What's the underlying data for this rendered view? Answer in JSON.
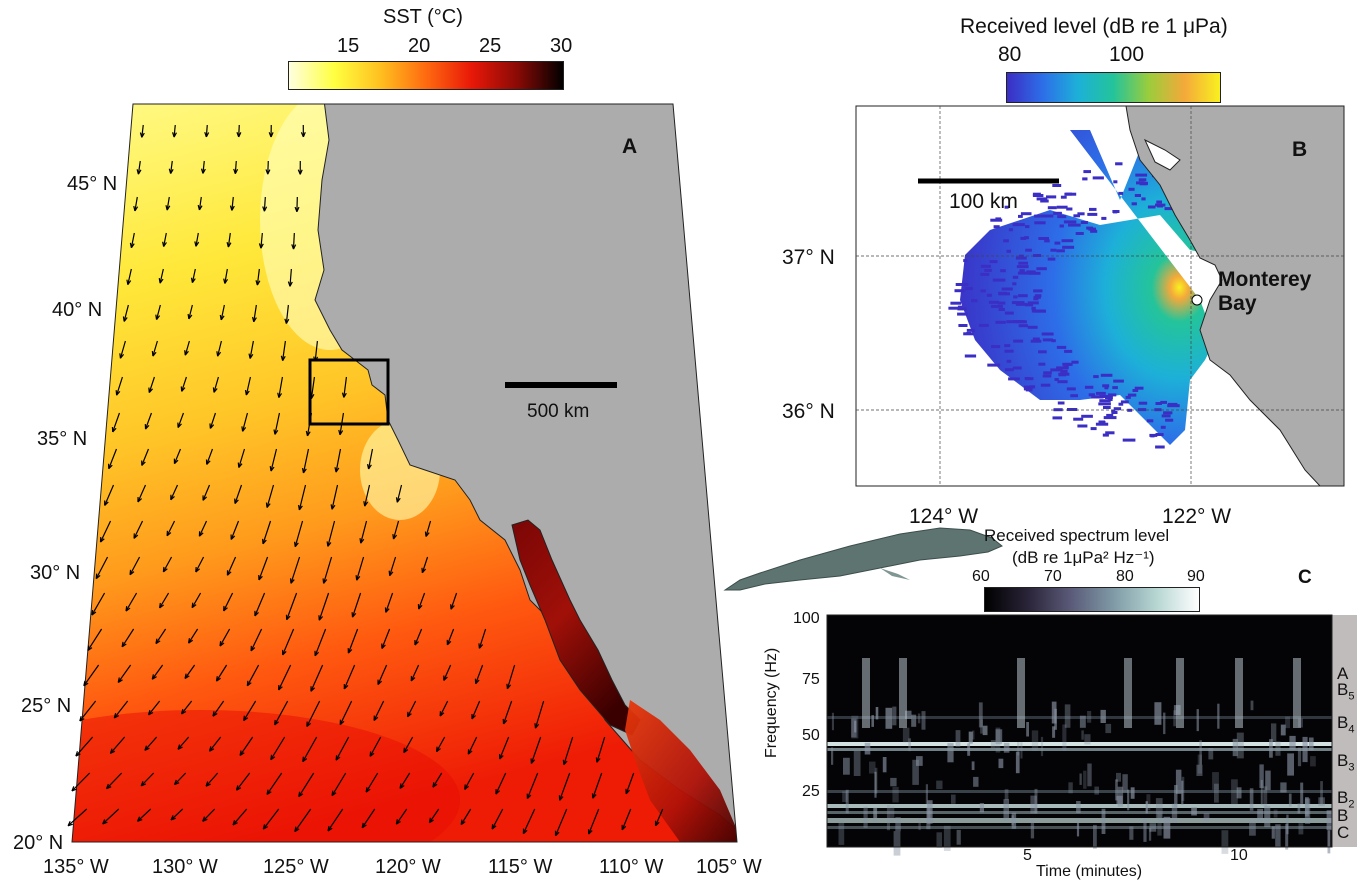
{
  "panel_a": {
    "letter": "A",
    "colorbar": {
      "title": "SST (°C)",
      "ticks": [
        "15",
        "20",
        "25",
        "30"
      ],
      "range": [
        10,
        30
      ],
      "colors": [
        "#ffffe0",
        "#ffff40",
        "#ffc020",
        "#ff6a10",
        "#e81808",
        "#8a0a06",
        "#000000"
      ]
    },
    "lat_labels": [
      "45° N",
      "40° N",
      "35° N",
      "30° N",
      "25° N",
      "20° N"
    ],
    "lon_labels": [
      "135° W",
      "130° W",
      "125° W",
      "120° W",
      "115° W",
      "110° W",
      "105° W"
    ],
    "scalebar_label": "500 km"
  },
  "panel_b": {
    "letter": "B",
    "colorbar": {
      "title": "Received level (dB re 1 μPa)",
      "ticks": [
        "80",
        "100"
      ],
      "colors": [
        "#3b2ec4",
        "#2d6ee8",
        "#1db0d8",
        "#24c49a",
        "#9ccc3c",
        "#f4a93a",
        "#f8f020"
      ]
    },
    "lat_labels": [
      "37° N",
      "36° N"
    ],
    "lon_labels": [
      "124° W",
      "122° W"
    ],
    "scalebar_label": "100 km",
    "place_line1": "Monterey",
    "place_line2": "Bay"
  },
  "panel_c": {
    "letter": "C",
    "colorbar": {
      "title_line1": "Received spectrum level",
      "title_line2": "(dB re 1μPa² Hz⁻¹)",
      "ticks": [
        "60",
        "70",
        "80",
        "90"
      ],
      "colors": [
        "#000000",
        "#2a2438",
        "#5a5a78",
        "#7f9aa6",
        "#b6d6d2",
        "#ffffff"
      ]
    },
    "y_label": "Frequency (Hz)",
    "x_label": "Time (minutes)",
    "y_ticks": [
      "100",
      "75",
      "50",
      "25"
    ],
    "x_ticks": [
      "5",
      "10"
    ],
    "call_units": [
      "A",
      "B5",
      "B4",
      "B3",
      "B2",
      "B",
      "C"
    ]
  }
}
